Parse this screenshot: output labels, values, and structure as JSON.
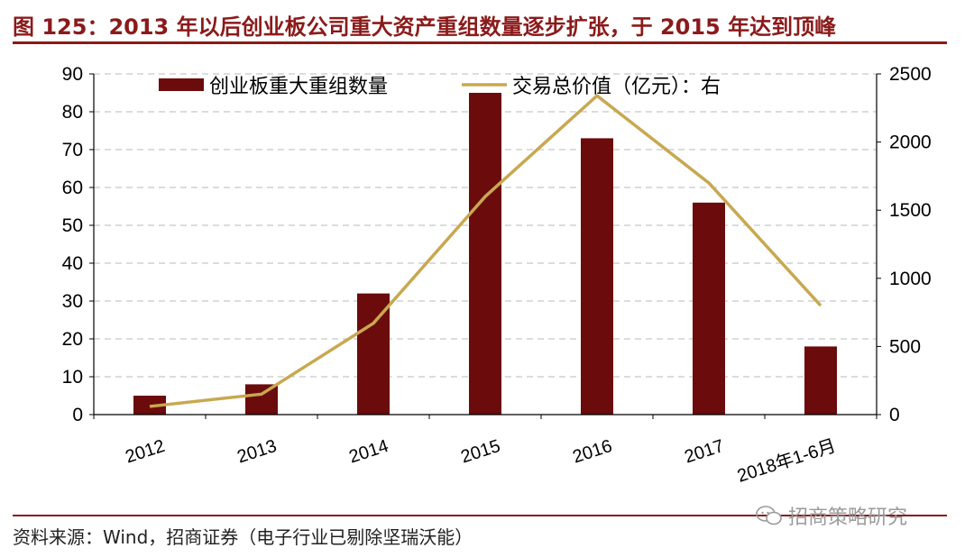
{
  "figure": {
    "title": "图 125：2013 年以后创业板公司重大资产重组数量逐步扩张，于 2015 年达到顶峰",
    "source": "资料来源：Wind，招商证券（电子行业已剔除坚瑞沃能）",
    "watermark": "招商策略研究"
  },
  "colors": {
    "bar": "#6b0b0b",
    "line": "#c8a850",
    "title": "#8b1a1a",
    "grid": "#c8c8c8"
  },
  "chart_data": {
    "type": "bar",
    "categories": [
      "2012",
      "2013",
      "2014",
      "2015",
      "2016",
      "2017",
      "2018年1-6月"
    ],
    "series": [
      {
        "name": "创业板重大重组数量",
        "type": "bar",
        "axis": "left",
        "values": [
          5,
          8,
          32,
          85,
          73,
          56,
          18
        ]
      },
      {
        "name": "交易总价值（亿元）：右",
        "type": "line",
        "axis": "right",
        "values": [
          60,
          150,
          670,
          1600,
          2340,
          1700,
          800
        ]
      }
    ],
    "y_left": {
      "lim": [
        0,
        90
      ],
      "ticks": [
        0,
        10,
        20,
        30,
        40,
        50,
        60,
        70,
        80,
        90
      ]
    },
    "y_right": {
      "lim": [
        0,
        2500
      ],
      "ticks": [
        0,
        500,
        1000,
        1500,
        2000,
        2500
      ]
    },
    "grid": true,
    "legend_position": "top"
  }
}
